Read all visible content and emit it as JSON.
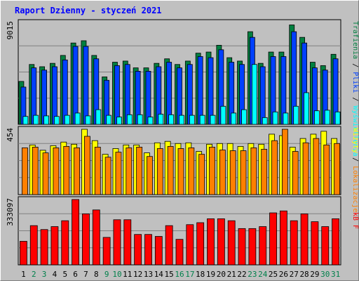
{
  "colors": {
    "frame": "#c0c0c0",
    "panel": "#c0c0c0",
    "title": "#0000ff",
    "hits": "#008040",
    "files": "#0040ff",
    "pages": "#00ffff",
    "visits": "#ffff00",
    "sites": "#ff8000",
    "kbytes": "#ff0000",
    "weekday": "#000000",
    "weekend": "#00804b"
  },
  "chart_data": {
    "type": "bar",
    "title": "Raport Dzienny - styczeń 2021",
    "x": [
      "1",
      "2",
      "3",
      "4",
      "5",
      "6",
      "7",
      "8",
      "9",
      "10",
      "11",
      "12",
      "13",
      "14",
      "15",
      "16",
      "17",
      "18",
      "19",
      "20",
      "21",
      "22",
      "23",
      "24",
      "25",
      "26",
      "27",
      "28",
      "29",
      "30",
      "31"
    ],
    "weekend_days": [
      2,
      3,
      9,
      10,
      16,
      17,
      23,
      24,
      30,
      31
    ],
    "legends": {
      "top": [
        "Trafienia",
        "Pliki",
        "Wyświetlenia"
      ],
      "middle": [
        "Wizyty",
        "Lokalizacje"
      ],
      "bottom": [
        "kB F"
      ]
    },
    "panels": [
      {
        "ymax_label": "9015",
        "ymax": 9015,
        "series": [
          {
            "name": "Trafienia",
            "color": "#008040",
            "values": [
              3800,
              5300,
              5100,
              5400,
              6100,
              7200,
              7400,
              6100,
              4200,
              5500,
              5600,
              5000,
              5000,
              5400,
              5800,
              5300,
              5600,
              6300,
              6400,
              7000,
              5900,
              5600,
              8200,
              5400,
              6400,
              6400,
              8800,
              7700,
              5500,
              5200,
              6200
            ]
          },
          {
            "name": "Pliki",
            "color": "#0040ff",
            "values": [
              3300,
              5000,
              4800,
              5100,
              5700,
              6900,
              6900,
              5800,
              3900,
              5200,
              5300,
              4700,
              4700,
              5100,
              5500,
              5000,
              5300,
              6000,
              5900,
              6600,
              5500,
              5300,
              7700,
              5100,
              6000,
              6000,
              8200,
              7200,
              5000,
              4800,
              5800
            ]
          },
          {
            "name": "Wyświetlenia",
            "color": "#00ffff",
            "values": [
              700,
              800,
              750,
              700,
              800,
              1000,
              750,
              1300,
              800,
              650,
              850,
              850,
              650,
              900,
              850,
              800,
              800,
              800,
              800,
              1600,
              1000,
              1300,
              5300,
              600,
              1100,
              1000,
              1600,
              2800,
              1200,
              1250,
              1100
            ]
          }
        ]
      },
      {
        "ymax_label": "454",
        "ymax": 454,
        "series": [
          {
            "name": "Wizyty",
            "color": "#ffff00",
            "values": [
              0,
              345,
              308,
              340,
              365,
              350,
              454,
              375,
              280,
              320,
              345,
              345,
              290,
              360,
              370,
              355,
              360,
              300,
              350,
              355,
              355,
              335,
              355,
              350,
              420,
              410,
              330,
              390,
              420,
              440,
              390
            ]
          },
          {
            "name": "Lokalizacje",
            "color": "#ff8000",
            "values": [
              325,
              330,
              290,
              325,
              335,
              325,
              405,
              330,
              260,
              295,
              325,
              330,
              265,
              320,
              335,
              320,
              325,
              280,
              330,
              310,
              305,
              305,
              325,
              315,
              375,
              454,
              300,
              360,
              390,
              345,
              355
            ]
          }
        ]
      },
      {
        "ymax_label": "333097",
        "ymax": 333097,
        "series": [
          {
            "name": "kB F",
            "color": "#ff0000",
            "values": [
              120000,
              200000,
              180000,
              195000,
              225000,
              333097,
              260000,
              280000,
              140000,
              230000,
              230000,
              155000,
              155000,
              145000,
              200000,
              130000,
              205000,
              215000,
              235000,
              235000,
              225000,
              185000,
              185000,
              195000,
              265000,
              275000,
              225000,
              260000,
              220000,
              195000,
              235000
            ]
          }
        ]
      }
    ]
  }
}
